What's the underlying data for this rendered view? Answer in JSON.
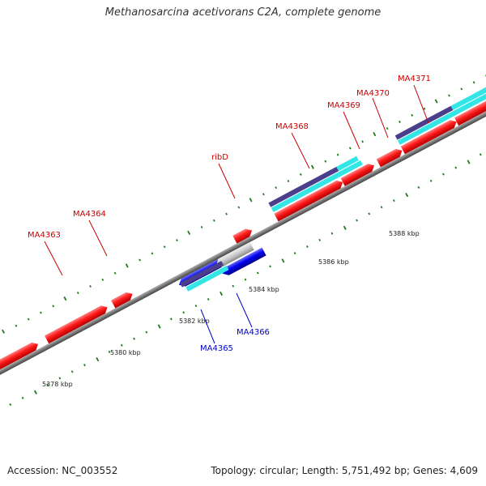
{
  "title": "Methanosarcina acetivorans C2A, complete genome",
  "footer": {
    "accession": "Accession: NC_003552",
    "summary": "Topology: circular; Length: 5,751,492 bp; Genes: 4,609"
  },
  "colors": {
    "forward_gene": "#ff1a1a",
    "reverse_gene": "#0000ee",
    "gray_gene": "#c8c8c8",
    "cyan_track": "#33e6e6",
    "purple_track": "#4b3f8c",
    "backbone": "#777777",
    "tick": "#1f7a1f",
    "label_forward": "#cc0000",
    "label_reverse": "#0000cc"
  },
  "scale_labels": [
    "5378 kbp",
    "5380 kbp",
    "5382 kbp",
    "5384 kbp",
    "5386 kbp",
    "5388 kbp"
  ],
  "gene_labels": [
    {
      "name": "MA4363",
      "strand": "forward"
    },
    {
      "name": "MA4364",
      "strand": "forward"
    },
    {
      "name": "ribD",
      "strand": "forward"
    },
    {
      "name": "MA4368",
      "strand": "forward"
    },
    {
      "name": "MA4369",
      "strand": "forward"
    },
    {
      "name": "MA4370",
      "strand": "forward"
    },
    {
      "name": "MA4371",
      "strand": "forward"
    },
    {
      "name": "MA4365",
      "strand": "reverse"
    },
    {
      "name": "MA4366",
      "strand": "reverse"
    }
  ]
}
